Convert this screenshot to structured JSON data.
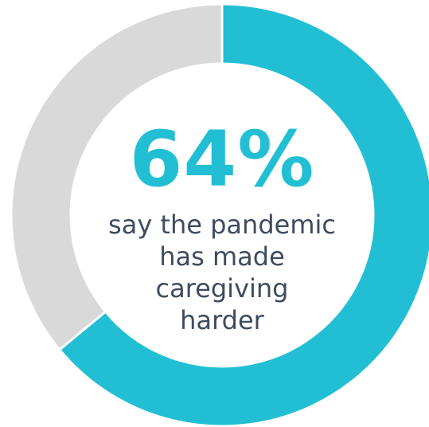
{
  "chart_data": {
    "type": "pie",
    "title": "",
    "slices": [
      {
        "label": "",
        "value": 64,
        "color": "#22bfd4"
      },
      {
        "label": "",
        "value": 36,
        "color": "#d9d9d9"
      }
    ],
    "center_value": "64%",
    "center_caption": [
      "say the pandemic",
      "has made",
      "caregiving",
      "harder"
    ]
  }
}
